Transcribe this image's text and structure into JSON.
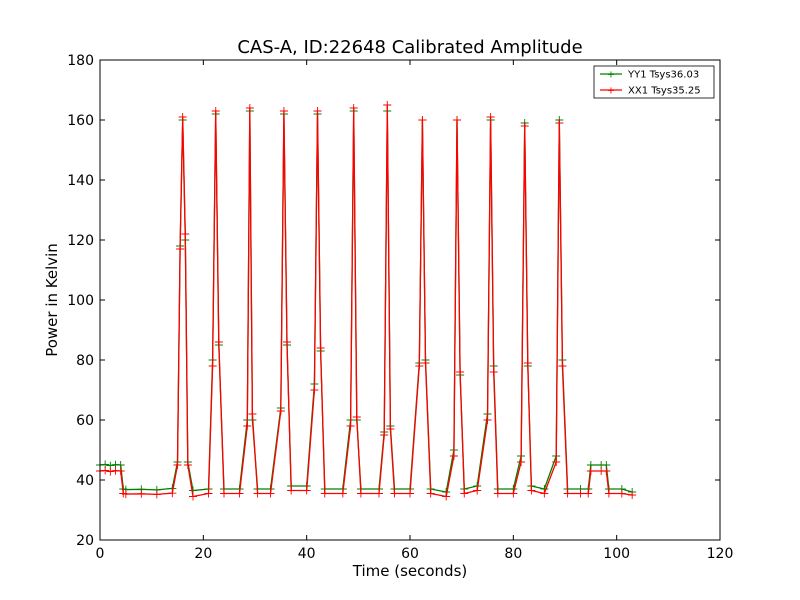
{
  "chart_data": {
    "type": "line",
    "title": "CAS-A, ID:22648 Calibrated Amplitude",
    "xlabel": "Time (seconds)",
    "ylabel": "Power in Kelvin",
    "xlim": [
      0,
      120
    ],
    "ylim": [
      20,
      180
    ],
    "xticks": [
      0,
      20,
      40,
      60,
      80,
      100,
      120
    ],
    "yticks": [
      20,
      40,
      60,
      80,
      100,
      120,
      140,
      160,
      180
    ],
    "grid": false,
    "legend_position": "top-right",
    "series": [
      {
        "name": "YY1 Tsys36.03",
        "color": "#008000",
        "marker": "+",
        "x": [
          0,
          1,
          2,
          3,
          4,
          4.5,
          5,
          8,
          11,
          14,
          15,
          15.5,
          16,
          16.5,
          17,
          18,
          21,
          21.8,
          22.4,
          23,
          24,
          27,
          28.5,
          29,
          29.5,
          30.5,
          33,
          35,
          35.6,
          36.2,
          37,
          40,
          41.5,
          42.1,
          42.7,
          43.5,
          47,
          48.5,
          49.1,
          49.7,
          50.5,
          54,
          55,
          55.6,
          56.2,
          57,
          60,
          61.8,
          62.4,
          63,
          64,
          67,
          68.5,
          69.1,
          69.7,
          70.5,
          73,
          75,
          75.6,
          76.2,
          77,
          80,
          81.5,
          82.2,
          82.8,
          83.5,
          86,
          88.3,
          88.9,
          89.5,
          90.5,
          93,
          94.5,
          95,
          97,
          98,
          98.5,
          101,
          103
        ],
        "y": [
          45,
          45.2,
          44.8,
          45.1,
          45,
          37,
          36.8,
          36.9,
          36.7,
          37.2,
          46,
          118,
          160,
          120,
          46,
          36.5,
          37,
          80,
          162,
          85,
          37,
          37,
          60,
          163,
          60,
          37,
          37,
          64,
          162,
          85,
          38,
          38,
          72,
          162,
          83,
          37,
          37,
          60,
          163,
          60,
          37,
          37,
          56,
          163,
          58,
          37,
          37,
          79,
          160,
          80,
          37,
          36,
          50,
          160,
          75,
          37,
          38,
          62,
          160,
          78,
          37,
          37,
          48,
          159,
          78,
          38,
          37,
          48,
          160,
          80,
          37,
          37,
          37,
          45,
          45,
          45,
          37,
          37,
          36
        ]
      },
      {
        "name": "XX1 Tsys35.25",
        "color": "#ff0000",
        "marker": "+",
        "x": [
          0,
          1,
          2,
          3,
          4,
          4.5,
          5,
          8,
          11,
          14,
          15,
          15.5,
          16,
          16.5,
          17,
          18,
          21,
          21.8,
          22.4,
          23,
          24,
          27,
          28.5,
          29,
          29.5,
          30.5,
          33,
          35,
          35.6,
          36.2,
          37,
          40,
          41.5,
          42.1,
          42.7,
          43.5,
          47,
          48.5,
          49.1,
          49.7,
          50.5,
          54,
          55,
          55.6,
          56.2,
          57,
          60,
          61.8,
          62.4,
          63,
          64,
          67,
          68.5,
          69.1,
          69.7,
          70.5,
          73,
          75,
          75.6,
          76.2,
          77,
          80,
          81.5,
          82.2,
          82.8,
          83.5,
          86,
          88.3,
          88.9,
          89.5,
          90.5,
          93,
          94.5,
          95,
          97,
          98,
          98.5,
          101,
          103
        ],
        "y": [
          43,
          43.2,
          42.8,
          43.1,
          43,
          35.5,
          35.3,
          35.4,
          35.2,
          35.6,
          45,
          117,
          161,
          122,
          45,
          34.5,
          35.5,
          78,
          163,
          86,
          35.5,
          35.5,
          58,
          164,
          62,
          35.5,
          35.5,
          63,
          163,
          86,
          36.5,
          36.5,
          70,
          163,
          84,
          35.5,
          35.5,
          58,
          164,
          61,
          35.5,
          35.5,
          55,
          165,
          57,
          35.5,
          35.5,
          78,
          160,
          79,
          35.5,
          34.5,
          48,
          160,
          76,
          35.5,
          36.5,
          60,
          161,
          76,
          35.5,
          35.5,
          46,
          158,
          79,
          36.5,
          35.5,
          46,
          159,
          78,
          35.5,
          35.5,
          35.5,
          43,
          43,
          43,
          35.5,
          35.5,
          35
        ]
      }
    ]
  }
}
